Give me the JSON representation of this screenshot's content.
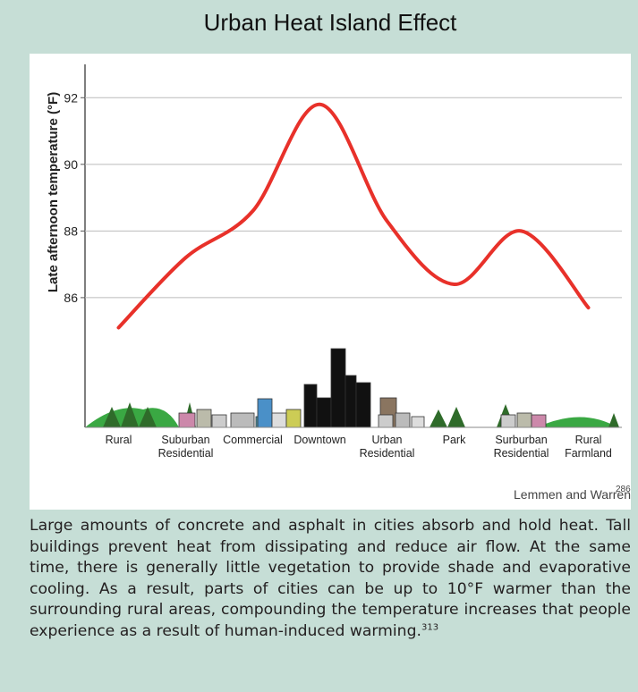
{
  "chart_data": {
    "type": "line",
    "title": "Urban Heat Island Effect",
    "y_label": "Late afternoon temperature (°F)",
    "categories": [
      "Rural",
      "Suburban Residential",
      "Commercial",
      "Downtown",
      "Urban Residential",
      "Park",
      "Surburban Residential",
      "Rural Farmland"
    ],
    "values": [
      85.1,
      87.2,
      88.6,
      91.8,
      88.3,
      86.4,
      88.0,
      85.7
    ],
    "color": "#e8312a",
    "ylim": [
      82,
      93
    ],
    "yticks": [
      86,
      88,
      90,
      92
    ],
    "grid": true
  },
  "credit": {
    "text": "Lemmen and Warren",
    "ref": "286"
  },
  "caption": {
    "text": "Large amounts of concrete and asphalt in cities absorb and hold heat. Tall buildings prevent heat from dissipating and reduce air flow. At the same time, there is generally little vegetation to provide shade and evaporative cooling. As a result, parts of cities can be up to 10°F warmer than the surrounding rural areas, compounding the temperature increases that people experience as a result of human-induced warming.",
    "ref": "313"
  }
}
